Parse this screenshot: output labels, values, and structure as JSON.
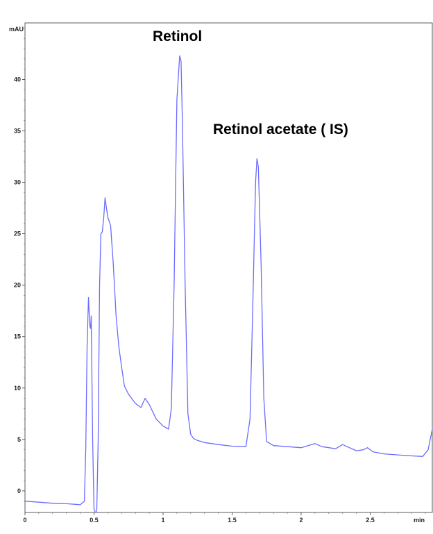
{
  "chart_data": {
    "type": "line",
    "title": "",
    "xlabel": "",
    "ylabel": "",
    "x_unit": "min",
    "y_unit": "mAU",
    "xlim": [
      0,
      2.95
    ],
    "ylim": [
      -2.1,
      45.5
    ],
    "x_ticks": [
      0,
      0.5,
      1,
      1.5,
      2,
      2.5
    ],
    "x_tick_labels": [
      "0",
      "0.5",
      "1",
      "1.5",
      "2",
      "2.5"
    ],
    "y_ticks": [
      0,
      5,
      10,
      15,
      20,
      25,
      30,
      35,
      40
    ],
    "y_tick_labels": [
      "0",
      "5",
      "10",
      "15",
      "20",
      "25",
      "30",
      "35",
      "40"
    ],
    "grid": false,
    "legend": "none",
    "line_color": "#6b6bff",
    "annotations": [
      {
        "text": "Retinol",
        "x": 1.13,
        "y": 42.3
      },
      {
        "text": "Retinol acetate ( IS)",
        "x": 1.68,
        "y": 32.3
      }
    ],
    "series": [
      {
        "x": [
          0,
          0.1,
          0.2,
          0.3,
          0.36,
          0.4,
          0.43,
          0.44,
          0.45,
          0.46,
          0.47,
          0.475,
          0.48,
          0.49,
          0.5,
          0.51,
          0.515,
          0.52,
          0.53,
          0.54,
          0.55,
          0.56,
          0.57,
          0.58,
          0.59,
          0.6,
          0.62,
          0.64,
          0.66,
          0.68,
          0.7,
          0.72,
          0.75,
          0.8,
          0.84,
          0.87,
          0.9,
          0.95,
          1.0,
          1.04,
          1.06,
          1.08,
          1.1,
          1.12,
          1.13,
          1.14,
          1.16,
          1.18,
          1.2,
          1.22,
          1.25,
          1.3,
          1.4,
          1.5,
          1.6,
          1.63,
          1.65,
          1.67,
          1.68,
          1.69,
          1.71,
          1.73,
          1.75,
          1.8,
          1.9,
          2.0,
          2.05,
          2.1,
          2.15,
          2.2,
          2.25,
          2.3,
          2.35,
          2.4,
          2.45,
          2.48,
          2.52,
          2.6,
          2.7,
          2.8,
          2.88,
          2.92,
          2.95
        ],
        "y": [
          -1.0,
          -1.1,
          -1.2,
          -1.25,
          -1.3,
          -1.35,
          -1.0,
          4.0,
          14.0,
          18.8,
          16.0,
          15.8,
          17.0,
          5.0,
          -1.8,
          -2.1,
          -2.1,
          -1.8,
          5.0,
          20.0,
          25.0,
          25.2,
          26.5,
          28.5,
          27.5,
          26.6,
          25.8,
          22.0,
          17.0,
          14.0,
          12.0,
          10.2,
          9.4,
          8.5,
          8.1,
          9.0,
          8.4,
          7.0,
          6.3,
          6.0,
          8.0,
          20.0,
          38.0,
          42.3,
          41.8,
          36.0,
          20.0,
          7.5,
          5.5,
          5.1,
          4.9,
          4.7,
          4.5,
          4.35,
          4.3,
          7.0,
          18.0,
          30.0,
          32.3,
          31.5,
          22.0,
          9.0,
          4.8,
          4.4,
          4.3,
          4.2,
          4.4,
          4.6,
          4.3,
          4.2,
          4.1,
          4.5,
          4.2,
          3.9,
          4.0,
          4.2,
          3.8,
          3.6,
          3.5,
          3.4,
          3.35,
          4.0,
          6.0
        ]
      }
    ]
  }
}
